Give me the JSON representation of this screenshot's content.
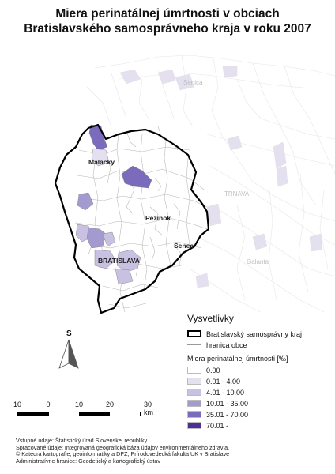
{
  "title_line1": "Miera perinatálnej úmrtnosti v obciach",
  "title_line2": "Bratislavského samosprávneho kraja v roku 2007",
  "places": {
    "senica": "Senica",
    "malacky": "Malacky",
    "trnava": "TRNAVA",
    "pezinok": "Pezinok",
    "senec": "Senec",
    "bratislava": "BRATISLAVA",
    "galanta": "Galanta"
  },
  "north_label": "S",
  "legend": {
    "title": "Vysvetlivky",
    "region_boundary": "Bratislavský samosprávny kraj",
    "municipal_boundary": "hranica obce",
    "value_title": "Miera perinatálnej úmrtnosti [‰]",
    "classes": [
      {
        "label": "0.00",
        "color": "#ffffff"
      },
      {
        "label": "0.01 - 4.00",
        "color": "#e4e0f0"
      },
      {
        "label": "4.01 - 10.00",
        "color": "#c8c1e2"
      },
      {
        "label": "10.01 - 35.00",
        "color": "#a39bd0"
      },
      {
        "label": "35.01 - 70.00",
        "color": "#7a6bbd"
      },
      {
        "label": "70.01 -",
        "color": "#4e2f95"
      }
    ]
  },
  "scale": {
    "labels": [
      "10",
      "0",
      "10",
      "20",
      "30 km"
    ]
  },
  "credits": [
    "Vstupné údaje: Štatistický úrad Slovenskej republiky",
    "Spracované údaje: Integrovaná geografická báza údajov environmentálneho zdravia,",
    "© Katedra kartografie, geoinformatiky a DPZ, Prírodovedecká fakulta UK v Bratislave",
    "Administratívne hranice: Geodetický a kartografický ústav"
  ]
}
